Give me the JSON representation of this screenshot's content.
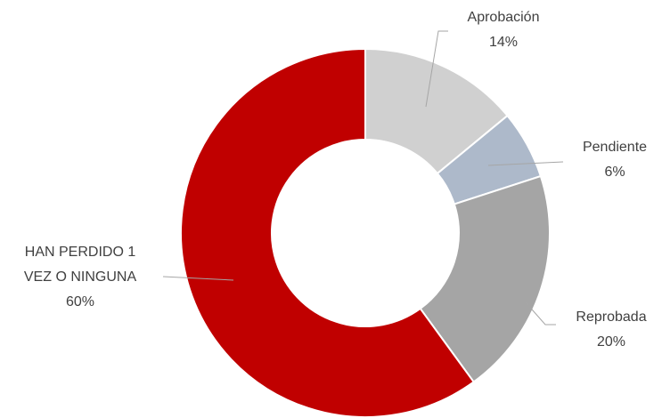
{
  "chart_data": {
    "type": "donut",
    "categories": [
      "Aprobación",
      "Pendiente",
      "Reprobada",
      "HAN PERDIDO 1 VEZ O NINGUNA"
    ],
    "values": [
      14,
      6,
      20,
      60
    ],
    "value_labels": [
      "14%",
      "6%",
      "20%",
      "60%"
    ],
    "colors": [
      "#d0d0d0",
      "#adb9ca",
      "#a5a5a5",
      "#c00000"
    ]
  }
}
